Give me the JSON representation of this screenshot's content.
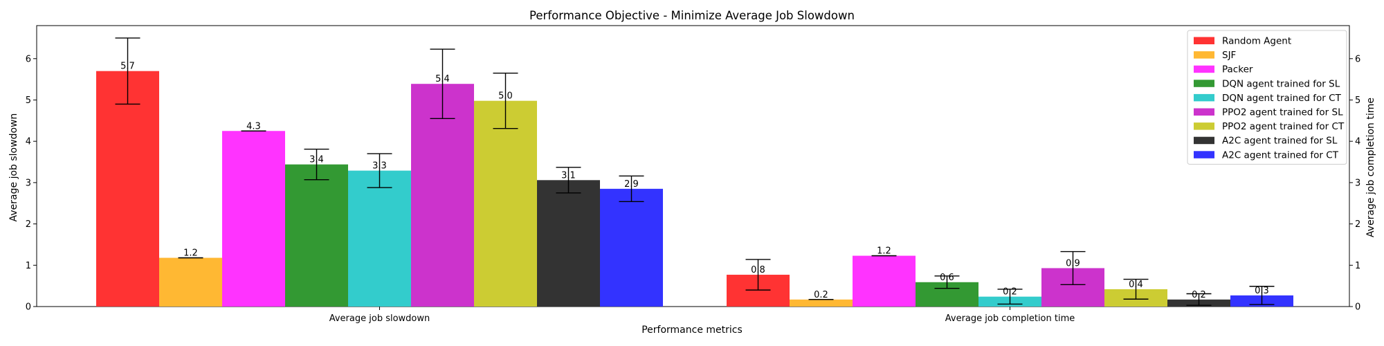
{
  "chart_data": {
    "type": "bar",
    "title": "Performance Objective - Minimize Average Job Slowdown",
    "xlabel": "Performance metrics",
    "ylabel": "Average job slowdown",
    "ylabel_right": "Average job completion time",
    "ylim": [
      0,
      6.8
    ],
    "yticks": [
      "0",
      "1",
      "2",
      "3",
      "4",
      "5",
      "6"
    ],
    "grid": false,
    "legend_position": "top-right",
    "categories": [
      "Average job slowdown",
      "Average job completion time"
    ],
    "series": [
      {
        "name": "Random Agent",
        "color": "#ff3333",
        "values": [
          5.7,
          0.77
        ],
        "labels": [
          "5.7",
          "0.8"
        ],
        "errors": [
          0.8,
          0.37
        ]
      },
      {
        "name": "SJF",
        "color": "#ffb833",
        "values": [
          1.18,
          0.17
        ],
        "labels": [
          "1.2",
          "0.2"
        ],
        "errors": [
          0.0,
          0.0
        ]
      },
      {
        "name": "Packer",
        "color": "#ff33ff",
        "values": [
          4.25,
          1.23
        ],
        "labels": [
          "4.3",
          "1.2"
        ],
        "errors": [
          0.0,
          0.0
        ]
      },
      {
        "name": "DQN agent trained for SL",
        "color": "#339933",
        "values": [
          3.44,
          0.59
        ],
        "labels": [
          "3.4",
          "0.6"
        ],
        "errors": [
          0.37,
          0.15
        ]
      },
      {
        "name": "DQN agent trained for CT",
        "color": "#33cccc",
        "values": [
          3.29,
          0.24
        ],
        "labels": [
          "3.3",
          "0.2"
        ],
        "errors": [
          0.41,
          0.18
        ]
      },
      {
        "name": "PPO2 agent trained for SL",
        "color": "#cc33cc",
        "values": [
          5.39,
          0.93
        ],
        "labels": [
          "5.4",
          "0.9"
        ],
        "errors": [
          0.84,
          0.4
        ]
      },
      {
        "name": "PPO2 agent trained for CT",
        "color": "#cccc33",
        "values": [
          4.98,
          0.42
        ],
        "labels": [
          "5.0",
          "0.4"
        ],
        "errors": [
          0.67,
          0.24
        ]
      },
      {
        "name": "A2C agent trained for SL",
        "color": "#333333",
        "values": [
          3.06,
          0.17
        ],
        "labels": [
          "3.1",
          "0.2"
        ],
        "errors": [
          0.31,
          0.14
        ]
      },
      {
        "name": "A2C agent trained for CT",
        "color": "#3333ff",
        "values": [
          2.85,
          0.27
        ],
        "labels": [
          "2.9",
          "0.3"
        ],
        "errors": [
          0.31,
          0.22
        ]
      }
    ]
  }
}
